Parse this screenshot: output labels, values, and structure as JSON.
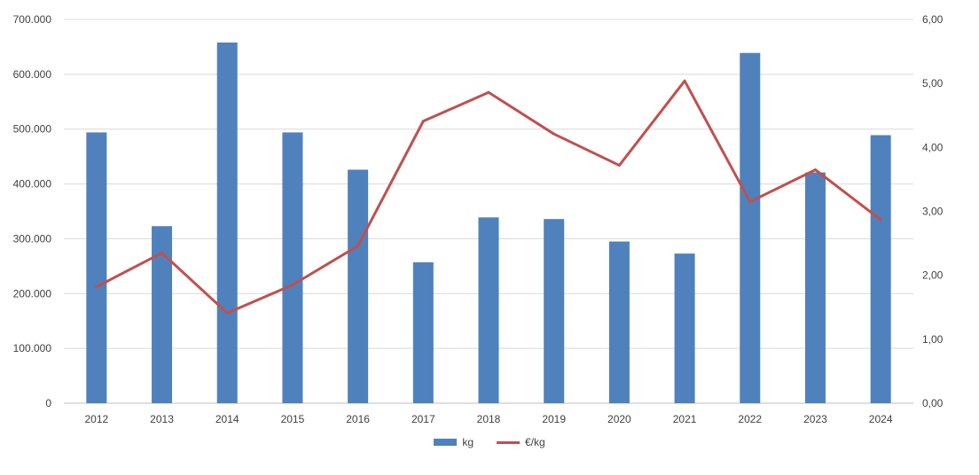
{
  "chart_data": {
    "type": "bar",
    "categories": [
      "2012",
      "2013",
      "2014",
      "2015",
      "2016",
      "2017",
      "2018",
      "2019",
      "2020",
      "2021",
      "2022",
      "2023",
      "2024"
    ],
    "series": [
      {
        "name": "kg",
        "type": "bar",
        "axis": "left",
        "color": "#4f81bd",
        "values": [
          494000,
          323000,
          658000,
          494000,
          426000,
          257000,
          339000,
          336000,
          295000,
          273000,
          639000,
          421000,
          489000
        ]
      },
      {
        "name": "€/kg",
        "type": "line",
        "axis": "right",
        "color": "#c0504d",
        "values": [
          1.82,
          2.35,
          1.41,
          1.85,
          2.46,
          4.41,
          4.86,
          4.21,
          3.72,
          5.04,
          3.15,
          3.65,
          2.87
        ]
      }
    ],
    "y_left": {
      "ylim": [
        0,
        700000
      ],
      "ticks": [
        "0",
        "100.000",
        "200.000",
        "300.000",
        "400.000",
        "500.000",
        "600.000",
        "700.000"
      ]
    },
    "y_right": {
      "ylim": [
        0,
        6
      ],
      "ticks": [
        "0,00",
        "1,00",
        "2,00",
        "3,00",
        "4,00",
        "5,00",
        "6,00"
      ]
    },
    "grid": true,
    "legend_position": "bottom"
  }
}
